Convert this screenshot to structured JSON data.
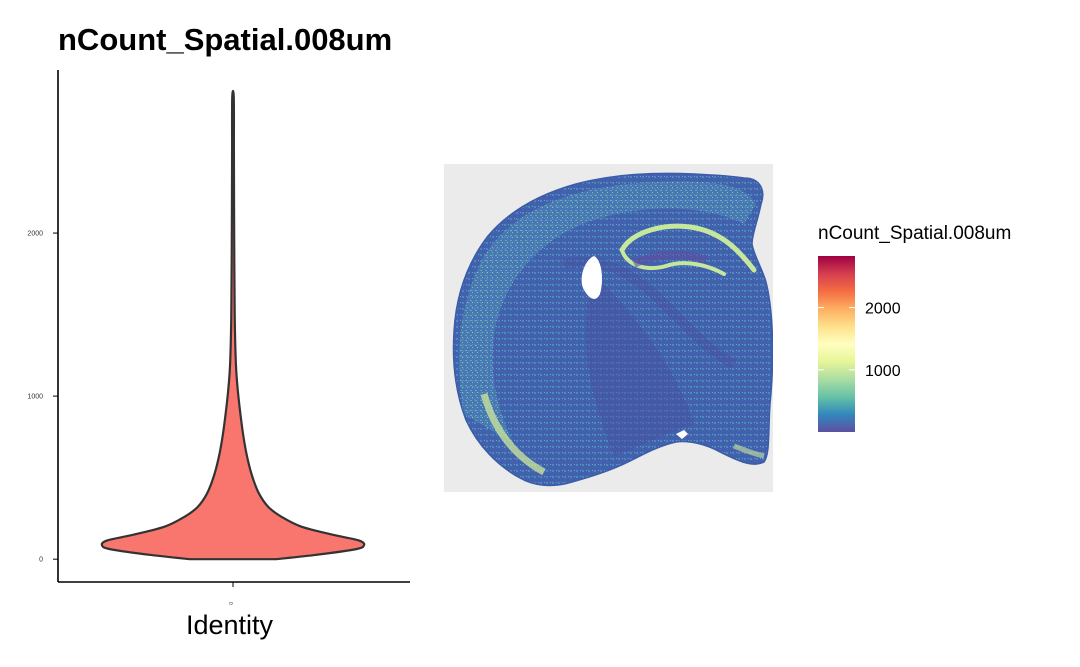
{
  "chart_data": [
    {
      "type": "violin",
      "title": "nCount_Spatial.008um",
      "xlabel": "Identity",
      "ylabel": "",
      "categories": [
        "0"
      ],
      "y_ticks": [
        0,
        1000,
        2000
      ],
      "y_tick_labels": [
        "0",
        "1000",
        "2000"
      ],
      "ylim": [
        -140,
        3000
      ],
      "data_range": [
        0,
        2830
      ],
      "mode_value": 85,
      "density_profile": [
        {
          "y": 0,
          "w": 0.33
        },
        {
          "y": 25,
          "w": 0.62
        },
        {
          "y": 60,
          "w": 0.93
        },
        {
          "y": 85,
          "w": 1.0
        },
        {
          "y": 115,
          "w": 0.96
        },
        {
          "y": 150,
          "w": 0.76
        },
        {
          "y": 200,
          "w": 0.52
        },
        {
          "y": 260,
          "w": 0.37
        },
        {
          "y": 320,
          "w": 0.27
        },
        {
          "y": 400,
          "w": 0.2
        },
        {
          "y": 500,
          "w": 0.15
        },
        {
          "y": 620,
          "w": 0.11
        },
        {
          "y": 750,
          "w": 0.08
        },
        {
          "y": 900,
          "w": 0.055
        },
        {
          "y": 1050,
          "w": 0.035
        },
        {
          "y": 1200,
          "w": 0.022
        },
        {
          "y": 1500,
          "w": 0.013
        },
        {
          "y": 2000,
          "w": 0.009
        },
        {
          "y": 2500,
          "w": 0.007
        },
        {
          "y": 2830,
          "w": 0.006
        }
      ],
      "fill_color": "#F8766D",
      "line_color": "#333333"
    },
    {
      "type": "heatmap",
      "description_kind": "spatial_feature_plot",
      "legend_title": "nCount_Spatial.008um",
      "legend_ticks": [
        1000,
        2000
      ],
      "legend_tick_labels": [
        "1000",
        "2000"
      ],
      "color_range": [
        0,
        2830
      ],
      "colormap": [
        "#5E4FA2",
        "#3288BD",
        "#66C2A5",
        "#ABDDA4",
        "#E6F598",
        "#FFFFBF",
        "#FEE08B",
        "#FDAE61",
        "#F46D43",
        "#D53E4F",
        "#9E0142"
      ],
      "panel_background": "#EBEBEB",
      "tissue_base_color": "#3E62AE",
      "highlight_color": "#C7E89C"
    }
  ]
}
